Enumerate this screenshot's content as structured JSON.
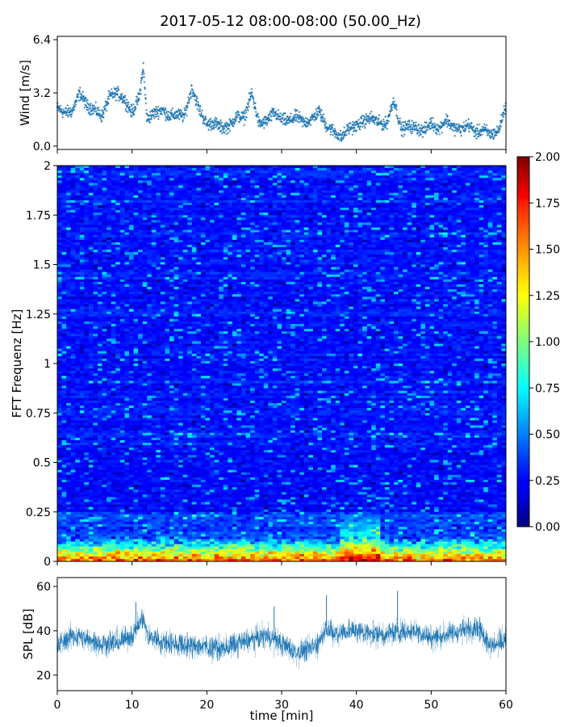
{
  "figure": {
    "title": "2017-05-12 08:00-08:00 (50.00_Hz)"
  },
  "colors": {
    "wind": "#1f77b4",
    "spl": "#1f77b4",
    "colormap": "jet"
  },
  "chart_data": [
    {
      "id": "wind",
      "type": "scatter",
      "ylabel": "Wind [m/s]",
      "ylim": [
        -0.2,
        6.6
      ],
      "yticks": [
        "0.0",
        "3.2",
        "6.4"
      ],
      "xlim": [
        0,
        60
      ],
      "anchors": [
        [
          0,
          2.3
        ],
        [
          1,
          2.0
        ],
        [
          2,
          2.1
        ],
        [
          3,
          3.2
        ],
        [
          4,
          2.4
        ],
        [
          5,
          2.2
        ],
        [
          6,
          1.8
        ],
        [
          7,
          3.0
        ],
        [
          8,
          3.2
        ],
        [
          9,
          2.8
        ],
        [
          10,
          2.0
        ],
        [
          11,
          3.0
        ],
        [
          11.5,
          4.8
        ],
        [
          12,
          1.6
        ],
        [
          13,
          2.0
        ],
        [
          14,
          2.2
        ],
        [
          15,
          1.8
        ],
        [
          16,
          1.9
        ],
        [
          17,
          1.8
        ],
        [
          18,
          3.5
        ],
        [
          19,
          2.2
        ],
        [
          20,
          1.3
        ],
        [
          21,
          1.4
        ],
        [
          22,
          1.1
        ],
        [
          23,
          1.2
        ],
        [
          24,
          1.8
        ],
        [
          25,
          1.7
        ],
        [
          26,
          3.2
        ],
        [
          27,
          1.3
        ],
        [
          28,
          1.5
        ],
        [
          29,
          2.0
        ],
        [
          30,
          1.6
        ],
        [
          31,
          1.5
        ],
        [
          32,
          1.8
        ],
        [
          33,
          1.4
        ],
        [
          34,
          1.6
        ],
        [
          35,
          2.1
        ],
        [
          36,
          1.2
        ],
        [
          37,
          0.9
        ],
        [
          38,
          0.5
        ],
        [
          39,
          1.1
        ],
        [
          40,
          1.2
        ],
        [
          41,
          1.5
        ],
        [
          42,
          1.7
        ],
        [
          43,
          1.4
        ],
        [
          44,
          1.3
        ],
        [
          45,
          2.8
        ],
        [
          46,
          1.0
        ],
        [
          47,
          1.2
        ],
        [
          48,
          1.1
        ],
        [
          49,
          0.9
        ],
        [
          50,
          1.4
        ],
        [
          51,
          1.0
        ],
        [
          52,
          1.6
        ],
        [
          53,
          1.1
        ],
        [
          54,
          1.0
        ],
        [
          55,
          1.3
        ],
        [
          56,
          0.8
        ],
        [
          57,
          1.0
        ],
        [
          58,
          0.7
        ],
        [
          59,
          0.9
        ],
        [
          60,
          2.5
        ]
      ]
    },
    {
      "id": "spectrogram",
      "type": "heatmap",
      "ylabel": "FFT Frequenz [Hz]",
      "ylim": [
        0,
        2
      ],
      "yticks": [
        "0",
        "0.25",
        "0.5",
        "0.75",
        "1",
        "1.25",
        "1.5",
        "1.75",
        "2"
      ],
      "xlim": [
        0,
        60
      ],
      "colorbar": {
        "range": [
          0,
          2
        ],
        "ticks": [
          "0.00",
          "0.25",
          "0.50",
          "0.75",
          "1.00",
          "1.25",
          "1.50",
          "1.75",
          "2.00"
        ]
      },
      "background_level": 0.28,
      "low_freq_level": 1.2,
      "hot_band": {
        "x": [
          38,
          43
        ],
        "level": 1.05
      }
    },
    {
      "id": "spl",
      "type": "line",
      "ylabel": "SPL [dB]",
      "xlabel": "time [min]",
      "ylim": [
        13,
        64
      ],
      "yticks": [
        "20",
        "40",
        "60"
      ],
      "xlim": [
        0,
        60
      ],
      "xticks": [
        "0",
        "10",
        "20",
        "30",
        "40",
        "50",
        "60"
      ],
      "anchors": [
        [
          0,
          33
        ],
        [
          2,
          38
        ],
        [
          4,
          36
        ],
        [
          6,
          34
        ],
        [
          8,
          35
        ],
        [
          10,
          38
        ],
        [
          11.5,
          46
        ],
        [
          12,
          38
        ],
        [
          14,
          35
        ],
        [
          16,
          34
        ],
        [
          18,
          33
        ],
        [
          20,
          33
        ],
        [
          22,
          32
        ],
        [
          24,
          34
        ],
        [
          26,
          36
        ],
        [
          28,
          38
        ],
        [
          30,
          34
        ],
        [
          32,
          30
        ],
        [
          34,
          32
        ],
        [
          35,
          35
        ],
        [
          36,
          42
        ],
        [
          37,
          38
        ],
        [
          38,
          40
        ],
        [
          40,
          40
        ],
        [
          42,
          39
        ],
        [
          44,
          38
        ],
        [
          46,
          40
        ],
        [
          48,
          40
        ],
        [
          50,
          37
        ],
        [
          52,
          38
        ],
        [
          54,
          40
        ],
        [
          56,
          42
        ],
        [
          57,
          38
        ],
        [
          58,
          33
        ],
        [
          60,
          37
        ]
      ],
      "spikes": [
        [
          36,
          56
        ],
        [
          45.5,
          58
        ],
        [
          29,
          51
        ],
        [
          10.5,
          53
        ]
      ]
    }
  ]
}
